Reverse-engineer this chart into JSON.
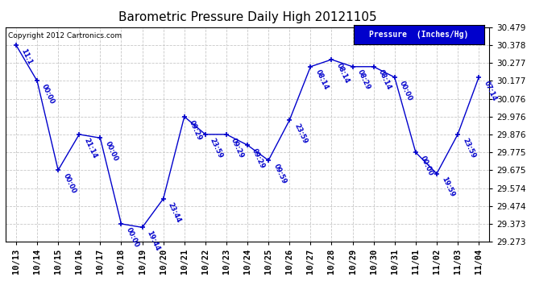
{
  "title": "Barometric Pressure Daily High 20121105",
  "legend_label": "Pressure  (Inches/Hg)",
  "copyright": "Copyright 2012 Cartronics.com",
  "x_labels": [
    "10/13",
    "10/14",
    "10/15",
    "10/16",
    "10/17",
    "10/18",
    "10/19",
    "10/20",
    "10/21",
    "10/22",
    "10/23",
    "10/24",
    "10/25",
    "10/26",
    "10/27",
    "10/28",
    "10/29",
    "10/30",
    "10/31",
    "11/01",
    "11/02",
    "11/03",
    "11/04"
  ],
  "points": [
    [
      0,
      30.378
    ],
    [
      1,
      30.177
    ],
    [
      2,
      29.675
    ],
    [
      3,
      29.876
    ],
    [
      4,
      29.856
    ],
    [
      5,
      29.373
    ],
    [
      6,
      29.353
    ],
    [
      7,
      29.514
    ],
    [
      8,
      29.976
    ],
    [
      9,
      29.876
    ],
    [
      10,
      29.876
    ],
    [
      11,
      29.816
    ],
    [
      12,
      29.73
    ],
    [
      13,
      29.956
    ],
    [
      14,
      30.257
    ],
    [
      15,
      30.297
    ],
    [
      16,
      30.257
    ],
    [
      17,
      30.257
    ],
    [
      18,
      30.197
    ],
    [
      19,
      29.775
    ],
    [
      20,
      29.655
    ],
    [
      21,
      29.876
    ],
    [
      22,
      30.197
    ]
  ],
  "point_labels": [
    "11:1",
    "00:00",
    "00:00",
    "21:14",
    "00:00",
    "00:00",
    "19:44",
    "23:44",
    "09:29",
    "23:59",
    "09:29",
    "09:29",
    "09:59",
    "23:59",
    "08:14",
    "08:14",
    "08:29",
    "08:14",
    "00:00",
    "00:00",
    "19:59",
    "23:59",
    "07:14"
  ],
  "ylim": [
    29.273,
    30.479
  ],
  "yticks": [
    29.273,
    29.373,
    29.474,
    29.574,
    29.675,
    29.775,
    29.876,
    29.976,
    30.076,
    30.177,
    30.277,
    30.378,
    30.479
  ],
  "line_color": "#0000CC",
  "bg_color": "#FFFFFF",
  "grid_color": "#C8C8C8",
  "title_fontsize": 11,
  "tick_fontsize": 7.5
}
